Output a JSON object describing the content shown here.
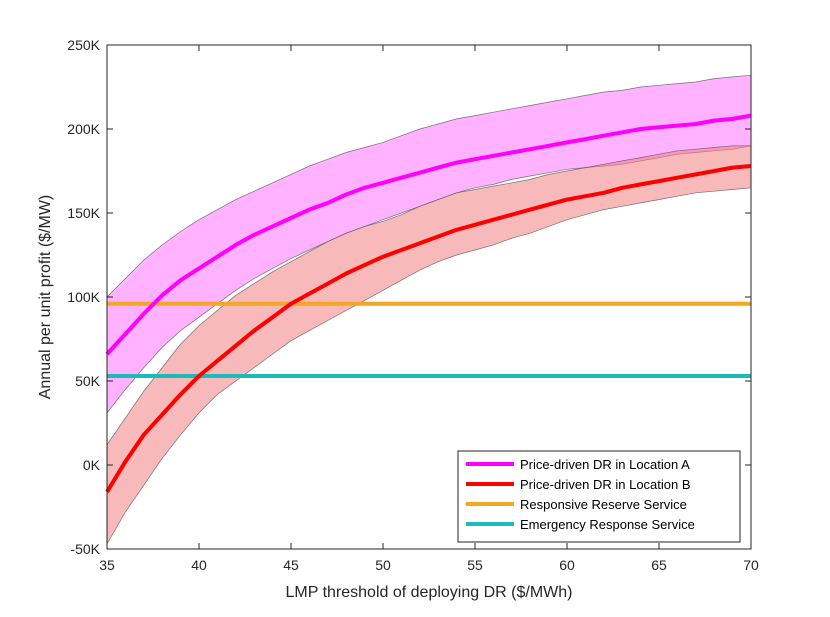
{
  "chart_data": {
    "type": "line",
    "title": "",
    "xlabel": "LMP threshold of deploying DR ($/MWh)",
    "ylabel": "Annual per unit profit ($/MW)",
    "xlim": [
      35,
      70
    ],
    "ylim": [
      -50000,
      250000
    ],
    "xticks": [
      35,
      40,
      45,
      50,
      55,
      60,
      65,
      70
    ],
    "xtick_labels": [
      "35",
      "40",
      "45",
      "50",
      "55",
      "60",
      "65",
      "70"
    ],
    "yticks": [
      -50000,
      0,
      50000,
      100000,
      150000,
      200000,
      250000
    ],
    "ytick_labels": [
      "-50K",
      "0K",
      "50K",
      "100K",
      "150K",
      "200K",
      "250K"
    ],
    "grid": false,
    "legend_position": "bottom-right",
    "x": [
      35,
      36,
      37,
      38,
      39,
      40,
      41,
      42,
      43,
      44,
      45,
      46,
      47,
      48,
      49,
      50,
      51,
      52,
      53,
      54,
      55,
      56,
      57,
      58,
      59,
      60,
      61,
      62,
      63,
      64,
      65,
      66,
      67,
      68,
      69,
      70
    ],
    "series": [
      {
        "name": "Price-driven DR in Location A",
        "color": "#ff00ff",
        "band_color": "#ff00ff",
        "band_opacity": 0.3,
        "values": [
          66000,
          78000,
          90000,
          101000,
          110000,
          117000,
          124000,
          131000,
          137000,
          142000,
          147000,
          152000,
          156000,
          161000,
          165000,
          168000,
          171000,
          174000,
          177000,
          180000,
          182000,
          184000,
          186000,
          188000,
          190000,
          192000,
          194000,
          196000,
          198000,
          200000,
          201000,
          202000,
          203000,
          205000,
          206000,
          208000
        ],
        "upper": [
          100000,
          111000,
          122000,
          131000,
          139000,
          146000,
          152000,
          158000,
          163000,
          168000,
          173000,
          178000,
          182000,
          186000,
          189000,
          192000,
          196000,
          200000,
          203000,
          206000,
          208000,
          210000,
          212000,
          214000,
          216000,
          218000,
          220000,
          222000,
          223000,
          225000,
          226000,
          227000,
          228000,
          230000,
          231000,
          232000
        ],
        "lower": [
          31000,
          45000,
          58000,
          70000,
          80000,
          88000,
          96000,
          104000,
          111000,
          117000,
          123000,
          128000,
          133000,
          138000,
          142000,
          146000,
          150000,
          154000,
          158000,
          162000,
          165000,
          167000,
          170000,
          172000,
          174000,
          176000,
          177000,
          178000,
          179000,
          181000,
          183000,
          185000,
          186000,
          187000,
          188000,
          190000
        ]
      },
      {
        "name": "Price-driven DR in Location B",
        "color": "#ff0000",
        "band_color": "#f08080",
        "band_opacity": 0.55,
        "values": [
          -16000,
          2000,
          18000,
          30000,
          42000,
          53000,
          62000,
          71000,
          80000,
          88000,
          96000,
          102000,
          108000,
          114000,
          119000,
          124000,
          128000,
          132000,
          136000,
          140000,
          143000,
          146000,
          149000,
          152000,
          155000,
          158000,
          160000,
          162000,
          165000,
          167000,
          169000,
          171000,
          173000,
          175000,
          177000,
          178000
        ],
        "upper": [
          12000,
          28000,
          44000,
          58000,
          72000,
          83000,
          92000,
          101000,
          108000,
          115000,
          121000,
          127000,
          133000,
          138000,
          142000,
          145000,
          149000,
          154000,
          158000,
          162000,
          164000,
          166000,
          168000,
          170000,
          173000,
          175000,
          177000,
          179000,
          181000,
          183000,
          185000,
          187000,
          188000,
          189000,
          190000,
          190000
        ],
        "lower": [
          -47000,
          -28000,
          -12000,
          4000,
          18000,
          31000,
          42000,
          50000,
          58000,
          66000,
          74000,
          80000,
          86000,
          92000,
          98000,
          104000,
          110000,
          116000,
          121000,
          125000,
          128000,
          131000,
          135000,
          138000,
          142000,
          146000,
          149000,
          152000,
          154000,
          156000,
          158000,
          160000,
          162000,
          163000,
          164000,
          165000
        ]
      },
      {
        "name": "Responsive Reserve Service",
        "color": "#f5a623",
        "constant": 96000
      },
      {
        "name": "Emergency Response Service",
        "color": "#1bbbbb",
        "constant": 53000
      }
    ]
  }
}
